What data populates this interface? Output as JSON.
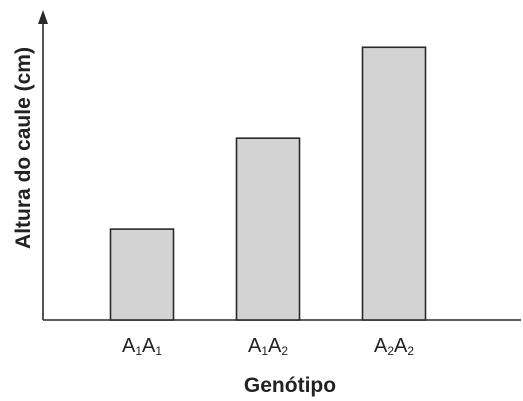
{
  "chart_data": {
    "type": "bar",
    "categories": [
      {
        "base1": "A",
        "sub1": "1",
        "base2": "A",
        "sub2": "1"
      },
      {
        "base1": "A",
        "sub1": "1",
        "base2": "A",
        "sub2": "2"
      },
      {
        "base1": "A",
        "sub1": "2",
        "base2": "A",
        "sub2": "2"
      }
    ],
    "values": [
      1,
      2,
      3
    ],
    "ylim": [
      0,
      3.3
    ],
    "xlabel": "Genótipo",
    "ylabel": "Altura do caule (cm)",
    "grid": false,
    "legend": "none",
    "y_ticks_shown": false
  },
  "colors": {
    "bar_fill": "#d3d3d3",
    "bar_stroke": "#2a2a2a",
    "axis": "#2a2a2a",
    "text": "#222222"
  }
}
